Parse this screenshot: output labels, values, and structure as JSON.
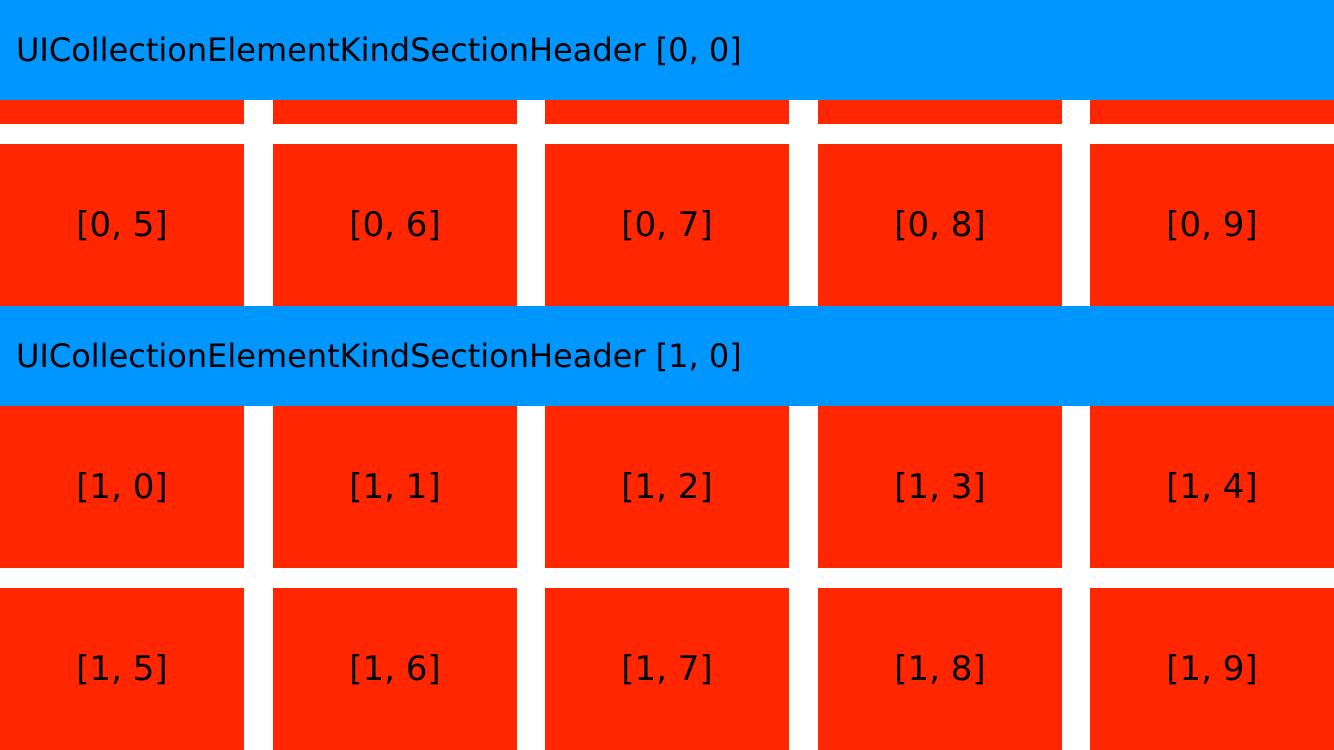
{
  "colors": {
    "header_background": "#0096ff",
    "cell_background": "#ff2600",
    "background": "#ffffff",
    "text": "#000000"
  },
  "sections": [
    {
      "header": "UICollectionElementKindSectionHeader [0, 0]",
      "rows": [
        [
          "",
          "",
          "",
          "",
          ""
        ],
        [
          "[0, 5]",
          "[0, 6]",
          "[0, 7]",
          "[0, 8]",
          "[0, 9]"
        ]
      ]
    },
    {
      "header": "UICollectionElementKindSectionHeader [1, 0]",
      "rows": [
        [
          "[1, 0]",
          "[1, 1]",
          "[1, 2]",
          "[1, 3]",
          "[1, 4]"
        ],
        [
          "[1, 5]",
          "[1, 6]",
          "[1, 7]",
          "[1, 8]",
          "[1, 9]"
        ]
      ]
    }
  ]
}
